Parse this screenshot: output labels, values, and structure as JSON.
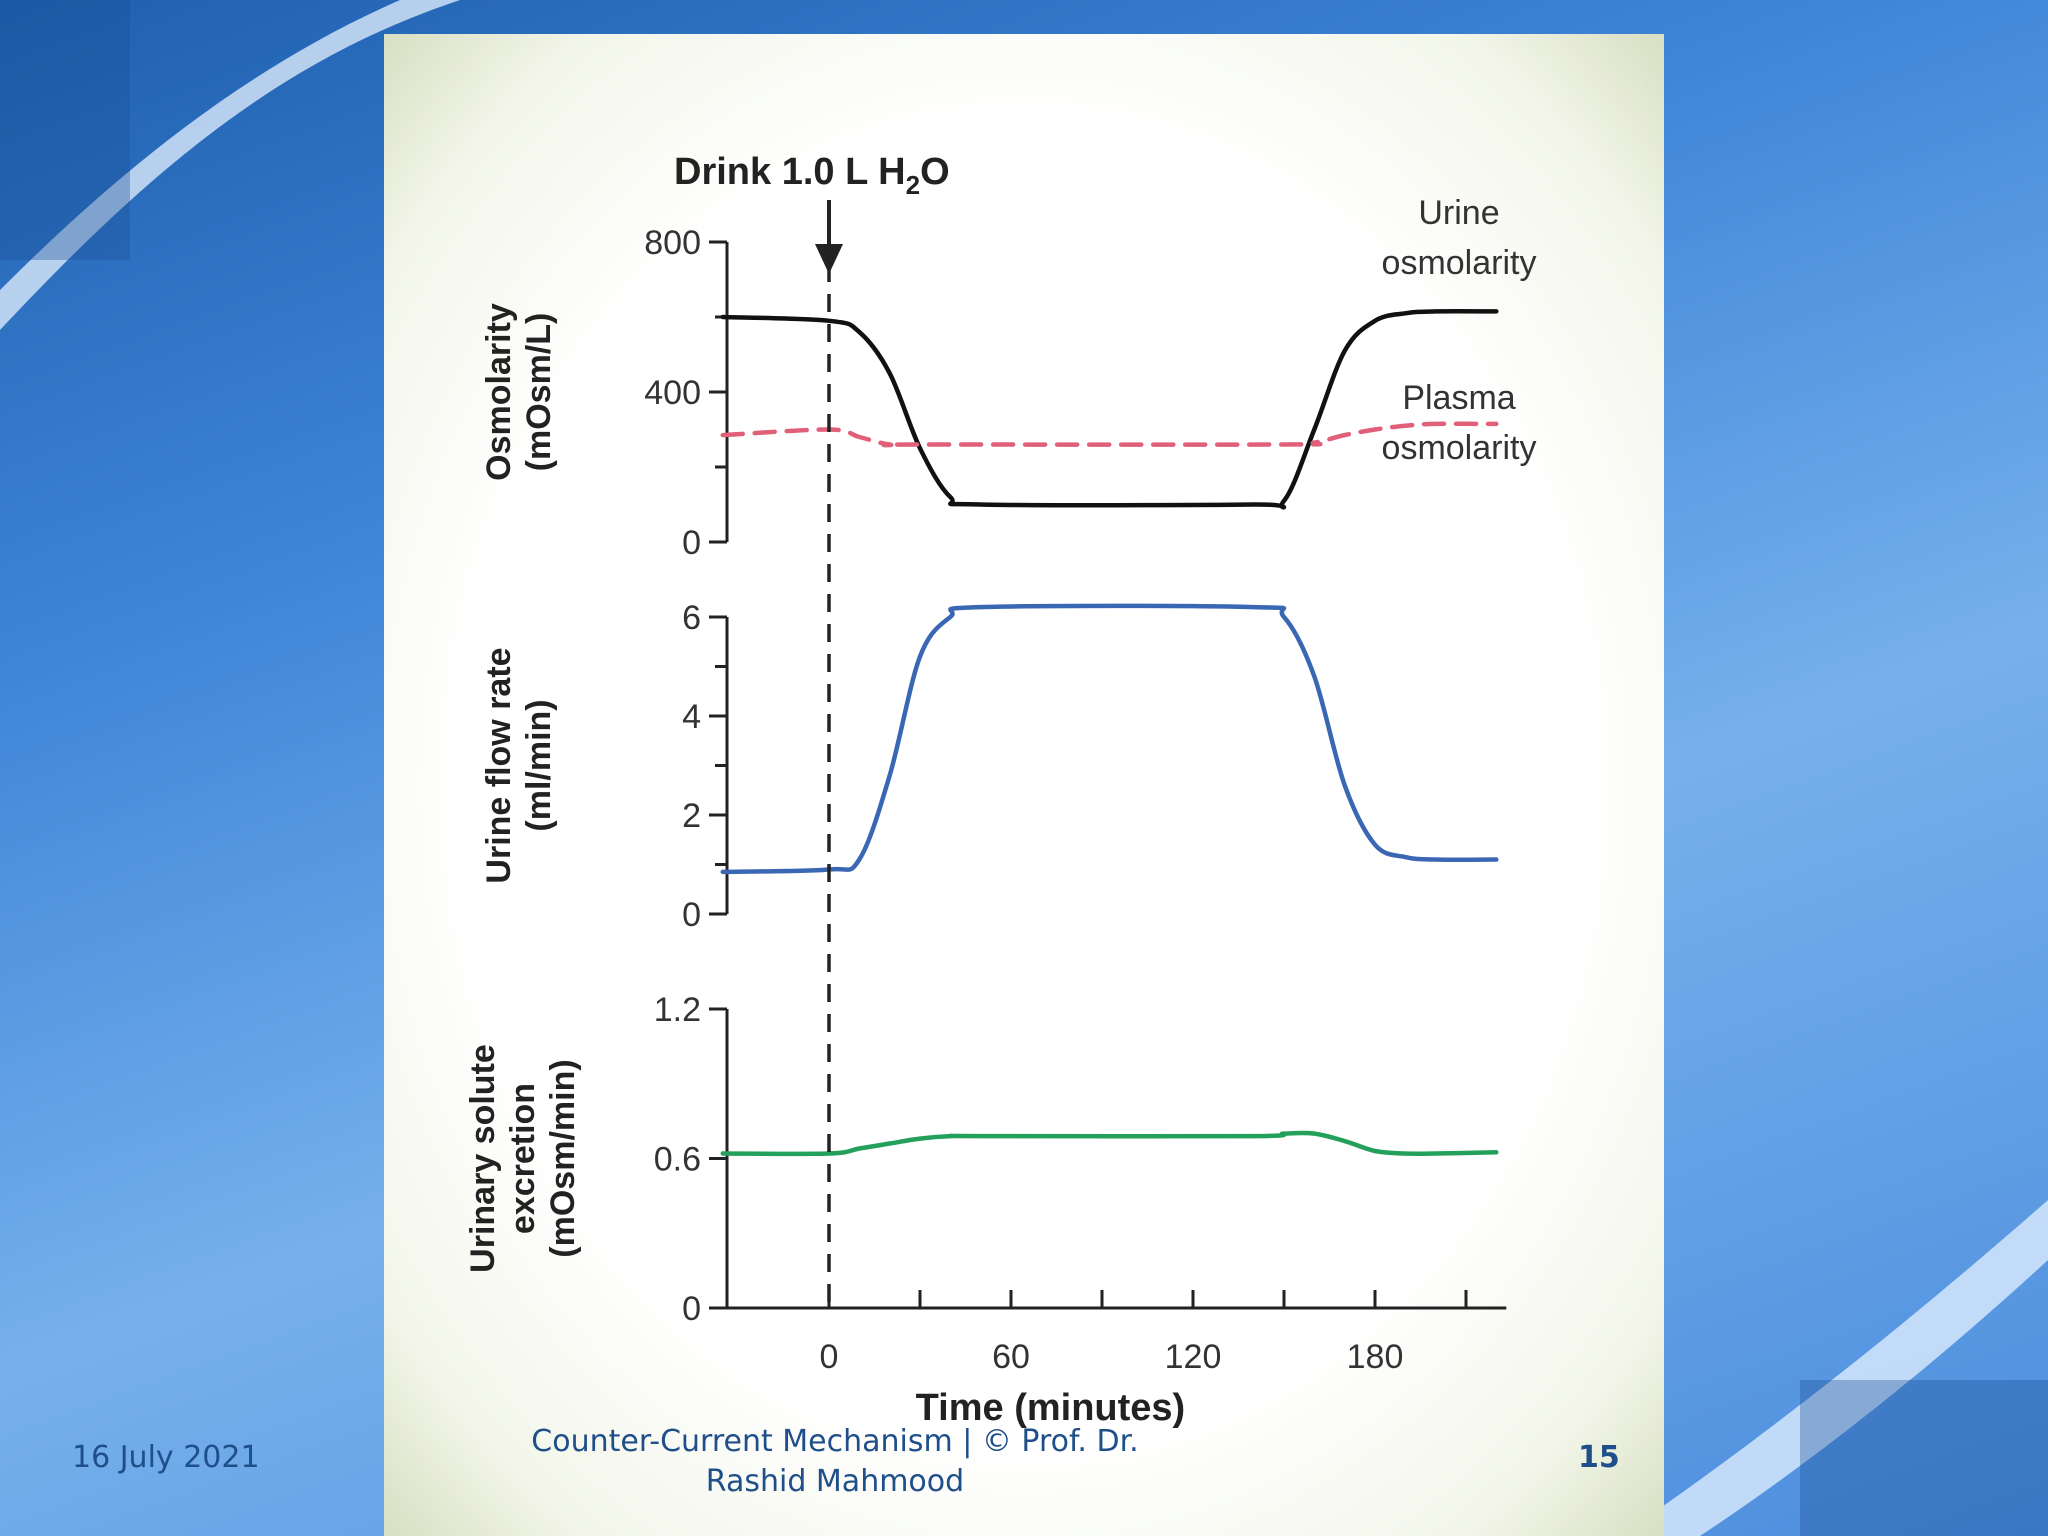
{
  "footer": {
    "date": "16 July 2021",
    "title": "Counter-Current Mechanism  |  © Prof. Dr. Rashid Mahmood",
    "page": "15"
  },
  "colors": {
    "urine_osmolarity": "#111111",
    "plasma_osmolarity": "#e0607a",
    "urine_flow": "#3a67b4",
    "solute_excretion": "#23a05a"
  },
  "chart_data": {
    "type": "line",
    "annotation": {
      "text": "Drink 1.0 L H",
      "sub": "2",
      "suffix": "O",
      "x": 0
    },
    "xlabel": "Time (minutes)",
    "xlim": [
      -35,
      220
    ],
    "xticks": [
      0,
      60,
      120,
      180
    ],
    "panels": [
      {
        "ylabel_lines": [
          "Osmolarity",
          "(mOsm/L)"
        ],
        "ylim": [
          0,
          800
        ],
        "yticks": [
          0,
          400,
          800
        ],
        "yticks_unlabeled": [
          200,
          600
        ],
        "series": [
          {
            "name": "Urine osmolarity",
            "label_lines": [
              "Urine",
              "osmolarity"
            ],
            "style": "solid",
            "x": [
              -35,
              0,
              10,
              20,
              30,
              40,
              50,
              140,
              150,
              160,
              170,
              180,
              190,
              200,
              220
            ],
            "y": [
              600,
              590,
              560,
              450,
              250,
              120,
              100,
              100,
              110,
              300,
              510,
              590,
              610,
              615,
              615
            ]
          },
          {
            "name": "Plasma osmolarity",
            "label_lines": [
              "Plasma",
              "osmolarity"
            ],
            "style": "dashed",
            "x": [
              -35,
              0,
              10,
              20,
              30,
              150,
              160,
              170,
              180,
              190,
              200,
              220
            ],
            "y": [
              285,
              300,
              280,
              260,
              260,
              260,
              265,
              285,
              300,
              310,
              315,
              315
            ]
          }
        ]
      },
      {
        "ylabel_lines": [
          "Urine flow rate",
          "(ml/min)"
        ],
        "ylim": [
          0,
          6
        ],
        "yticks": [
          0,
          2,
          4,
          6
        ],
        "yticks_unlabeled": [
          1,
          3,
          5
        ],
        "series": [
          {
            "name": "Urine flow rate",
            "style": "solid",
            "x": [
              -35,
              0,
              10,
              20,
              30,
              40,
              50,
              140,
              150,
              160,
              170,
              180,
              190,
              200,
              220
            ],
            "y": [
              0.85,
              0.9,
              1.1,
              2.8,
              5.2,
              6.0,
              6.2,
              6.2,
              6.0,
              4.8,
              2.6,
              1.4,
              1.15,
              1.1,
              1.1
            ]
          }
        ]
      },
      {
        "ylabel_lines": [
          "Urinary solute",
          "excretion",
          "(mOsm/min)"
        ],
        "ylim": [
          0,
          1.2
        ],
        "yticks": [
          0,
          0.6,
          1.2
        ],
        "ytick_labels": [
          "0",
          "0.6",
          "1.2"
        ],
        "yticks_unlabeled": [],
        "series": [
          {
            "name": "Urinary solute excretion",
            "style": "solid",
            "x": [
              -35,
              0,
              10,
              20,
              30,
              40,
              50,
              140,
              150,
              160,
              170,
              180,
              190,
              200,
              220
            ],
            "y": [
              0.62,
              0.62,
              0.64,
              0.66,
              0.68,
              0.69,
              0.69,
              0.69,
              0.7,
              0.7,
              0.67,
              0.63,
              0.62,
              0.62,
              0.625
            ]
          }
        ]
      }
    ]
  }
}
